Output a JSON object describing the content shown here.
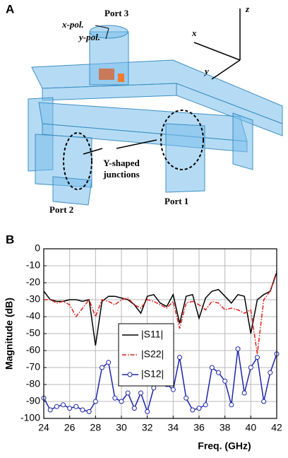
{
  "figure": {
    "panel_a": {
      "label": "A",
      "port3": "Port 3",
      "xpol": "x-pol.",
      "ypol": "y-pol.",
      "axis_z": "z",
      "axis_x": "x",
      "axis_y": "y",
      "junction_line1": "Y-shaped",
      "junction_line2": "junctions",
      "port2": "Port 2",
      "port1": "Port 1"
    },
    "panel_b_label": "B"
  },
  "chart_data": {
    "type": "line",
    "x_label": "Freq. (GHz)",
    "y_label": "Magnitude (dB)",
    "x": [
      24,
      24.5,
      25,
      25.5,
      26,
      26.5,
      27,
      27.5,
      28,
      28.5,
      29,
      29.5,
      30,
      30.5,
      31,
      31.5,
      32,
      32.5,
      33,
      33.5,
      34,
      34.5,
      35,
      35.5,
      36,
      36.5,
      37,
      37.5,
      38,
      38.5,
      39,
      39.5,
      40,
      40.5,
      41,
      41.5,
      42
    ],
    "series": [
      {
        "name": "|S11|",
        "color": "#000000",
        "linestyle": "solid",
        "marker": "none",
        "values": [
          -25,
          -30,
          -31,
          -31,
          -30,
          -30,
          -31,
          -30,
          -57,
          -31,
          -28,
          -28,
          -29,
          -30,
          -33,
          -38,
          -28,
          -27,
          -32,
          -34,
          -27,
          -44,
          -28,
          -27,
          -41,
          -29,
          -25,
          -24,
          -28,
          -32,
          -27,
          -28,
          -50,
          -30,
          -27,
          -25,
          -14
        ]
      },
      {
        "name": "|S22|",
        "color": "#e0201b",
        "linestyle": "dashdot",
        "marker": "none",
        "values": [
          -30,
          -30,
          -32,
          -31,
          -33,
          -40,
          -35,
          -30,
          -40,
          -30,
          -31,
          -33,
          -30,
          -29,
          -33,
          -35,
          -30,
          -31,
          -33,
          -35,
          -31,
          -47,
          -32,
          -31,
          -33,
          -36,
          -31,
          -32,
          -36,
          -35,
          -36,
          -38,
          -36,
          -62,
          -30,
          -25,
          -13
        ]
      },
      {
        "name": "|S12|",
        "color": "#1c24a8",
        "linestyle": "solid",
        "marker": "circle",
        "values": [
          -88,
          -95,
          -93,
          -92,
          -94,
          -93,
          -95,
          -96,
          -90,
          -70,
          -67,
          -88,
          -90,
          -85,
          -94,
          -85,
          -96,
          -82,
          -75,
          -80,
          -83,
          -64,
          -88,
          -95,
          -94,
          -92,
          -70,
          -73,
          -78,
          -92,
          -59,
          -85,
          -70,
          -64,
          -90,
          -73,
          -62
        ]
      }
    ],
    "xlim": [
      24,
      42
    ],
    "ylim": [
      -100,
      0
    ],
    "xticks": [
      24,
      26,
      28,
      30,
      32,
      34,
      36,
      38,
      40,
      42
    ],
    "yticks": [
      -100,
      -90,
      -80,
      -70,
      -60,
      -50,
      -40,
      -30,
      -20,
      -10,
      0
    ],
    "grid": true,
    "legend": "center"
  }
}
